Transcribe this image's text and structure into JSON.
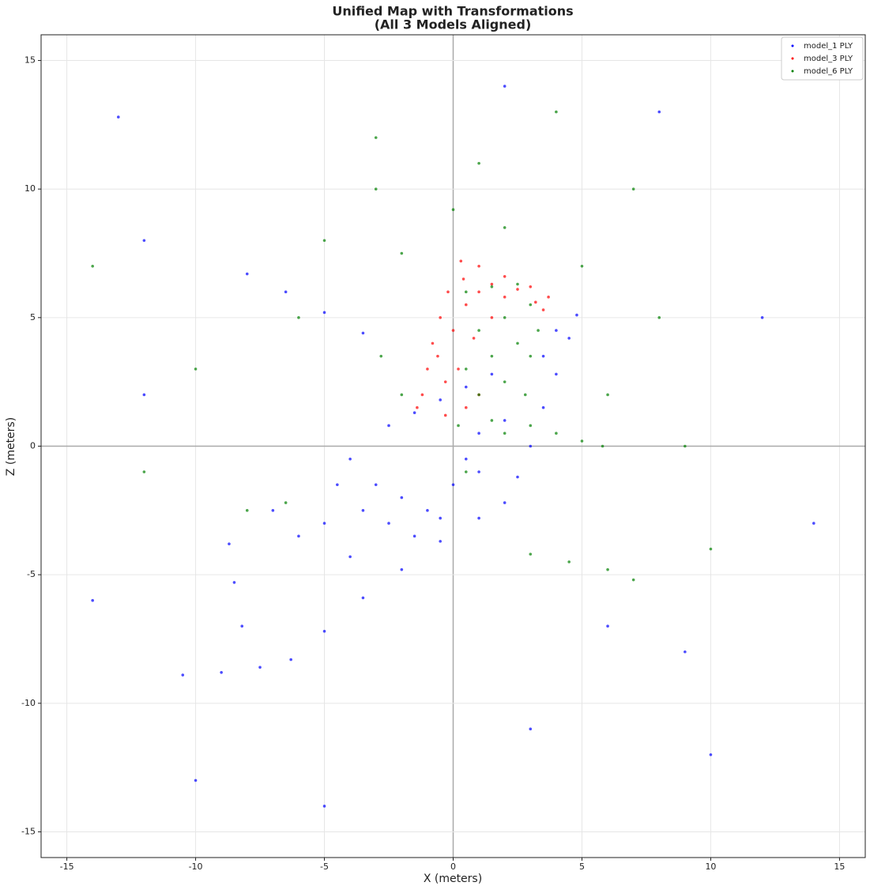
{
  "chart_data": {
    "type": "scatter",
    "title": "Unified Map with Transformations",
    "subtitle": "(All 3 Models Aligned)",
    "x_label": "X (meters)",
    "y_label": "Z (meters)",
    "xlim": [
      -16,
      16
    ],
    "ylim": [
      -16,
      16
    ],
    "xticks": [
      -15,
      -10,
      -5,
      0,
      5,
      10,
      15
    ],
    "yticks": [
      -15,
      -10,
      -5,
      0,
      5,
      10,
      15
    ],
    "grid": true,
    "legend": "upper right",
    "series": [
      {
        "name": "model_1 PLY",
        "color": "#0000ff",
        "x": [
          -10.5,
          -9,
          -7.5,
          -6.3,
          -5,
          -3.5,
          -2,
          -0.5,
          1,
          2,
          2.5,
          3,
          3.5,
          4,
          4.5,
          4.8,
          -8,
          -6.5,
          -5,
          -3.5,
          -2.5,
          -1.5,
          -0.5,
          0.5,
          1.5,
          -4,
          -3,
          -2,
          -1,
          0,
          1,
          -3.5,
          -2.5,
          -1.5,
          -0.5,
          0.5,
          -4.5,
          -5,
          -6,
          -4,
          -8.7,
          -8.5,
          -8.2,
          -7,
          -13,
          -12,
          -14,
          10,
          12,
          -10,
          8,
          14,
          -5,
          3,
          6,
          -12,
          9,
          2,
          1,
          2,
          3.5,
          4
        ],
        "values": [
          -8.9,
          -8.8,
          -8.6,
          -8.3,
          -7.2,
          -5.9,
          -4.8,
          -3.7,
          -2.8,
          -2.2,
          -1.2,
          0,
          1.5,
          2.8,
          4.2,
          5.1,
          6.7,
          6,
          5.2,
          4.4,
          0.8,
          1.3,
          1.8,
          2.3,
          2.8,
          -0.5,
          -1.5,
          -2,
          -2.5,
          -1.5,
          -1,
          -2.5,
          -3,
          -3.5,
          -2.8,
          -0.5,
          -1.5,
          -3,
          -3.5,
          -4.3,
          -3.8,
          -5.3,
          -7,
          -2.5,
          12.8,
          8,
          -6,
          -12,
          5,
          -13,
          13,
          -3,
          -14,
          -11,
          -7,
          2,
          -8,
          14,
          0.5,
          1,
          3.5,
          4.5
        ]
      },
      {
        "name": "model_3 PLY",
        "color": "#ff0000",
        "x": [
          0.3,
          1,
          2,
          3,
          3.7,
          -0.2,
          -0.5,
          -0.8,
          -1,
          -1.2,
          -1.4,
          0,
          0.5,
          1,
          1.5,
          2.5,
          3.2,
          0.2,
          -0.3,
          0.5,
          1,
          -0.6,
          0.8,
          2,
          3.5,
          -0.3,
          1.5,
          0.4
        ],
        "values": [
          7.2,
          7,
          6.6,
          6.2,
          5.8,
          6,
          5,
          4,
          3,
          2,
          1.5,
          4.5,
          5.5,
          6,
          6.3,
          6.1,
          5.6,
          3,
          2.5,
          1.5,
          2,
          3.5,
          4.2,
          5.8,
          5.3,
          1.2,
          5,
          6.5
        ]
      },
      {
        "name": "model_6 PLY",
        "color": "#008000",
        "x": [
          0.5,
          1.5,
          2.5,
          3,
          2,
          1,
          2.5,
          1.5,
          3,
          0.5,
          2,
          1,
          2.8,
          1.5,
          0.2,
          3.3,
          2,
          3,
          4,
          5,
          5.8,
          3,
          4.5,
          6,
          7,
          0,
          -2,
          -5,
          1,
          -3,
          2,
          5,
          8,
          -8,
          -6.5,
          -10,
          6,
          9,
          -12,
          10,
          -3,
          4,
          -14,
          7,
          -2.8,
          -2,
          -6,
          0.5
        ],
        "values": [
          6,
          6.2,
          6.3,
          5.5,
          5,
          4.5,
          4,
          3.5,
          3.5,
          3,
          2.5,
          2,
          2,
          1,
          0.8,
          4.5,
          0.5,
          0.8,
          0.5,
          0.2,
          0,
          -4.2,
          -4.5,
          -4.8,
          -5.2,
          9.2,
          7.5,
          8,
          11,
          10,
          8.5,
          7,
          5,
          -2.5,
          -2.2,
          3,
          2,
          0,
          -1,
          -4,
          12,
          13,
          7,
          10,
          3.5,
          2,
          5,
          -1
        ]
      }
    ]
  }
}
